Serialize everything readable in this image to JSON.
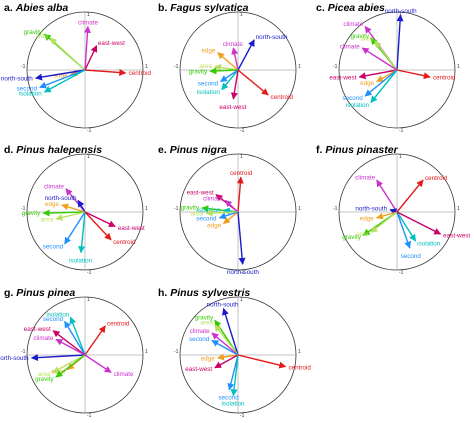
{
  "colors": {
    "centroid": "#e41a1c",
    "climate": "#cc33cc",
    "east-west": "#cc0066",
    "edge": "#f0a020",
    "gravity": "#33cc00",
    "area": "#b8e060",
    "isolation": "#00bfbf",
    "second": "#1e90ff",
    "north-south": "#1a1acc"
  },
  "tick_labels": {
    "pos": "1",
    "neg": "-1"
  },
  "chart_data": [
    {
      "type": "biplot",
      "panel": "a.",
      "species": "Abies alba",
      "xlim": [
        -1,
        1
      ],
      "ylim": [
        -1,
        1
      ],
      "vectors": [
        {
          "name": "climate",
          "x": 0.05,
          "y": 0.75
        },
        {
          "name": "gravity",
          "x": -0.7,
          "y": 0.62
        },
        {
          "name": "area",
          "x": -0.6,
          "y": 0.55
        },
        {
          "name": "east-west",
          "x": 0.2,
          "y": 0.42
        },
        {
          "name": "centroid",
          "x": 0.7,
          "y": -0.05
        },
        {
          "name": "edge",
          "x": -0.25,
          "y": -0.08
        },
        {
          "name": "north-south",
          "x": -0.85,
          "y": -0.14
        },
        {
          "name": "second",
          "x": -0.78,
          "y": -0.3
        },
        {
          "name": "isolation",
          "x": -0.7,
          "y": -0.38
        }
      ]
    },
    {
      "type": "biplot",
      "panel": "b.",
      "species": "Fagus sylvatica",
      "xlim": [
        -1,
        1
      ],
      "ylim": [
        -1,
        1
      ],
      "vectors": [
        {
          "name": "climate",
          "x": -0.08,
          "y": 0.38
        },
        {
          "name": "north-south",
          "x": 0.28,
          "y": 0.52
        },
        {
          "name": "edge",
          "x": -0.35,
          "y": 0.3
        },
        {
          "name": "area",
          "x": -0.4,
          "y": 0.06
        },
        {
          "name": "gravity",
          "x": -0.48,
          "y": -0.02
        },
        {
          "name": "second",
          "x": -0.3,
          "y": -0.2
        },
        {
          "name": "isolation",
          "x": -0.28,
          "y": -0.34
        },
        {
          "name": "east-west",
          "x": -0.08,
          "y": -0.5
        },
        {
          "name": "centroid",
          "x": 0.52,
          "y": -0.43
        }
      ]
    },
    {
      "type": "biplot",
      "panel": "c.",
      "species": "Picea abies",
      "xlim": [
        -1,
        1
      ],
      "ylim": [
        -1,
        1
      ],
      "vectors": [
        {
          "name": "north-south",
          "x": 0.06,
          "y": 0.95
        },
        {
          "name": "climate",
          "x": -0.55,
          "y": 0.75
        },
        {
          "name": "gravity",
          "x": -0.45,
          "y": 0.55
        },
        {
          "name": "area",
          "x": -0.38,
          "y": 0.5
        },
        {
          "name": "climate",
          "x": -0.6,
          "y": 0.38
        },
        {
          "name": "east-west",
          "x": -0.65,
          "y": -0.12
        },
        {
          "name": "edge",
          "x": -0.35,
          "y": -0.2
        },
        {
          "name": "second",
          "x": -0.55,
          "y": -0.45
        },
        {
          "name": "isolation",
          "x": -0.45,
          "y": -0.56
        },
        {
          "name": "centroid",
          "x": 0.57,
          "y": -0.12
        }
      ]
    },
    {
      "type": "biplot",
      "panel": "d.",
      "species": "Pinus halepensis",
      "xlim": [
        -1,
        1
      ],
      "ylim": [
        -1,
        1
      ],
      "vectors": [
        {
          "name": "climate",
          "x": -0.33,
          "y": 0.4
        },
        {
          "name": "north-south",
          "x": -0.12,
          "y": 0.2
        },
        {
          "name": "edge",
          "x": -0.4,
          "y": 0.12
        },
        {
          "name": "gravity",
          "x": -0.72,
          "y": -0.02
        },
        {
          "name": "area",
          "x": -0.5,
          "y": -0.12
        },
        {
          "name": "second",
          "x": -0.35,
          "y": -0.55
        },
        {
          "name": "isolation",
          "x": -0.07,
          "y": -0.7
        },
        {
          "name": "east-west",
          "x": 0.52,
          "y": -0.25
        },
        {
          "name": "centroid",
          "x": 0.45,
          "y": -0.48
        }
      ]
    },
    {
      "type": "biplot",
      "panel": "e.",
      "species": "Pinus nigra",
      "xlim": [
        -1,
        1
      ],
      "ylim": [
        -1,
        1
      ],
      "vectors": [
        {
          "name": "centroid",
          "x": 0.05,
          "y": 0.6
        },
        {
          "name": "east-west",
          "x": -0.38,
          "y": 0.3
        },
        {
          "name": "climate",
          "x": -0.22,
          "y": 0.2
        },
        {
          "name": "gravity",
          "x": -0.62,
          "y": 0.07
        },
        {
          "name": "isolation",
          "x": -0.25,
          "y": 0.03
        },
        {
          "name": "area",
          "x": -0.55,
          "y": -0.02
        },
        {
          "name": "second",
          "x": -0.32,
          "y": -0.1
        },
        {
          "name": "edge",
          "x": -0.25,
          "y": -0.2
        },
        {
          "name": "north-south",
          "x": 0.08,
          "y": -0.9
        }
      ]
    },
    {
      "type": "biplot",
      "panel": "f.",
      "species": "Pinus pinaster",
      "xlim": [
        -1,
        1
      ],
      "ylim": [
        -1,
        1
      ],
      "vectors": [
        {
          "name": "climate",
          "x": -0.35,
          "y": 0.55
        },
        {
          "name": "centroid",
          "x": 0.45,
          "y": 0.55
        },
        {
          "name": "north-south",
          "x": -0.12,
          "y": 0.04
        },
        {
          "name": "edge",
          "x": -0.35,
          "y": -0.1
        },
        {
          "name": "gravity",
          "x": -0.58,
          "y": -0.4
        },
        {
          "name": "area",
          "x": -0.45,
          "y": -0.35
        },
        {
          "name": "isolation",
          "x": 0.32,
          "y": -0.5
        },
        {
          "name": "second",
          "x": 0.22,
          "y": -0.62
        },
        {
          "name": "east-west",
          "x": 0.75,
          "y": -0.38
        }
      ]
    },
    {
      "type": "biplot",
      "panel": "g.",
      "species": "Pinus pinea",
      "xlim": [
        -1,
        1
      ],
      "ylim": [
        -1,
        1
      ],
      "vectors": [
        {
          "name": "isolation",
          "x": -0.25,
          "y": 0.65
        },
        {
          "name": "second",
          "x": -0.35,
          "y": 0.58
        },
        {
          "name": "centroid",
          "x": 0.35,
          "y": 0.5
        },
        {
          "name": "east-west",
          "x": -0.55,
          "y": 0.42
        },
        {
          "name": "climate",
          "x": -0.5,
          "y": 0.27
        },
        {
          "name": "north-south",
          "x": -0.92,
          "y": -0.05
        },
        {
          "name": "edge",
          "x": -0.3,
          "y": -0.25
        },
        {
          "name": "area",
          "x": -0.55,
          "y": -0.3
        },
        {
          "name": "gravity",
          "x": -0.5,
          "y": -0.38
        },
        {
          "name": "climate",
          "x": 0.45,
          "y": -0.3
        }
      ]
    },
    {
      "type": "biplot",
      "panel": "h.",
      "species": "Pinus sylvestris",
      "xlim": [
        -1,
        1
      ],
      "ylim": [
        -1,
        1
      ],
      "vectors": [
        {
          "name": "north-south",
          "x": -0.25,
          "y": 0.8
        },
        {
          "name": "gravity",
          "x": -0.4,
          "y": 0.6
        },
        {
          "name": "area",
          "x": -0.4,
          "y": 0.52
        },
        {
          "name": "climate",
          "x": -0.45,
          "y": 0.38
        },
        {
          "name": "second",
          "x": -0.45,
          "y": 0.25
        },
        {
          "name": "edge",
          "x": -0.35,
          "y": -0.05
        },
        {
          "name": "east-west",
          "x": -0.4,
          "y": -0.22
        },
        {
          "name": "second",
          "x": -0.15,
          "y": -0.6
        },
        {
          "name": "isolation",
          "x": -0.08,
          "y": -0.7
        },
        {
          "name": "centroid",
          "x": 0.82,
          "y": -0.2
        }
      ]
    }
  ]
}
